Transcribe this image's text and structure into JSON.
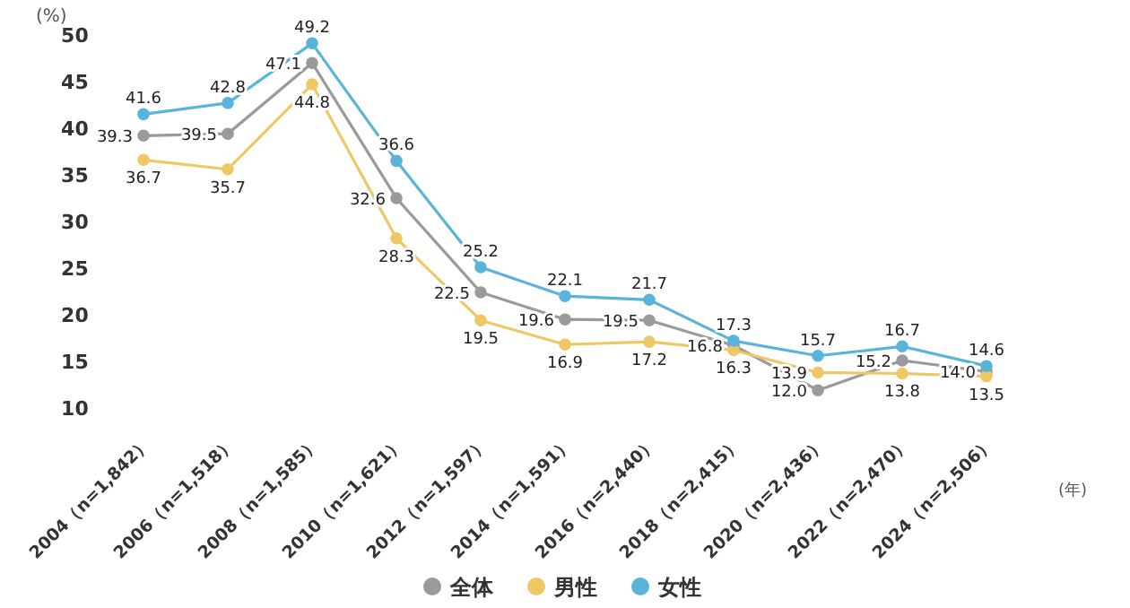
{
  "chart_data": {
    "type": "line",
    "ylabel": "(%)",
    "xlabel": "(年)",
    "categories": [
      "2004（n=1,842）",
      "2006（n=1,518）",
      "2008（n=1,585）",
      "2010（n=1,621）",
      "2012（n=1,597）",
      "2014（n=1,591）",
      "2016（n=2,440）",
      "2018（n=2,415）",
      "2020（n=2,436）",
      "2022（n=2,470）",
      "2024（n=2,506）"
    ],
    "series": [
      {
        "name": "全体",
        "color": "#9a9a9a",
        "values": [
          39.3,
          39.5,
          47.1,
          32.6,
          22.5,
          19.6,
          19.5,
          16.8,
          12.0,
          15.2,
          14.0
        ],
        "value_labels": [
          "39.3",
          "39.5",
          "47.1",
          "32.6",
          "22.5",
          "19.6",
          "19.5",
          "16.8",
          "12.0",
          "15.2",
          "14.0"
        ]
      },
      {
        "name": "男性",
        "color": "#efc866",
        "values": [
          36.7,
          35.7,
          44.8,
          28.3,
          19.5,
          16.9,
          17.2,
          16.3,
          13.9,
          13.8,
          13.5
        ],
        "value_labels": [
          "36.7",
          "35.7",
          "44.8",
          "28.3",
          "19.5",
          "16.9",
          "17.2",
          "16.3",
          "13.9",
          "13.8",
          "13.5"
        ]
      },
      {
        "name": "女性",
        "color": "#5ab4d9",
        "values": [
          41.6,
          42.8,
          49.2,
          36.6,
          25.2,
          22.1,
          21.7,
          17.3,
          15.7,
          16.7,
          14.6
        ],
        "value_labels": [
          "41.6",
          "42.8",
          "49.2",
          "36.6",
          "25.2",
          "22.1",
          "21.7",
          "17.3",
          "15.7",
          "16.7",
          "14.6"
        ]
      }
    ],
    "ylim": [
      10,
      50
    ],
    "yticks": [
      10,
      15,
      20,
      25,
      30,
      35,
      40,
      45,
      50
    ],
    "grid": false,
    "legend": "bottom",
    "marker": "circle",
    "line_style": "solid"
  }
}
